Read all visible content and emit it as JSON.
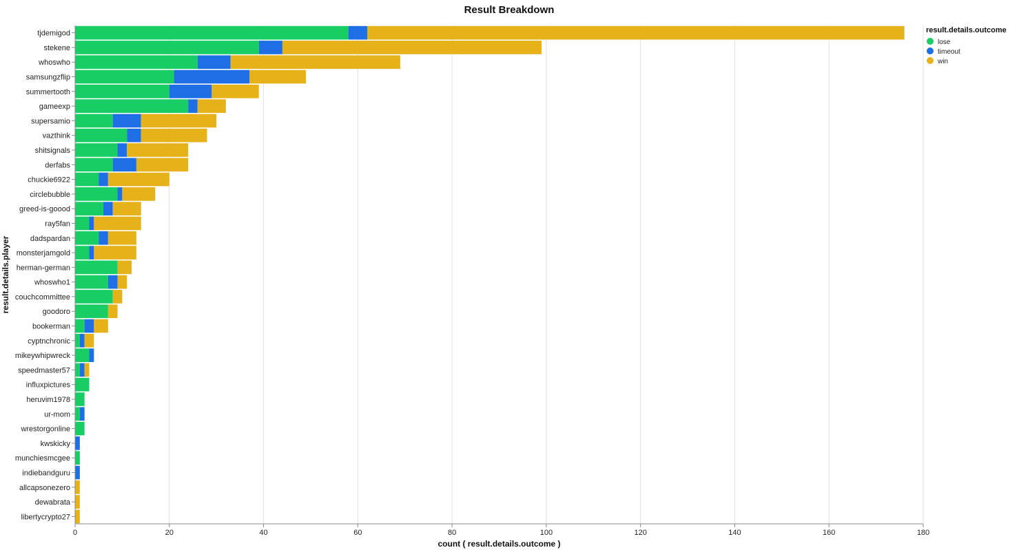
{
  "chart_data": {
    "type": "bar",
    "orientation": "horizontal",
    "stacked": true,
    "title": "Result Breakdown",
    "xlabel": "count ( result.details.outcome )",
    "ylabel": "result.details.player",
    "xlim": [
      0,
      180
    ],
    "xticks": [
      0,
      20,
      40,
      60,
      80,
      100,
      120,
      140,
      160,
      180
    ],
    "grid": true,
    "legend": {
      "title": "result.details.outcome",
      "position": "top-right"
    },
    "categories": [
      "tjdemigod",
      "stekene",
      "whoswho",
      "samsungzflip",
      "summertooth",
      "gameexp",
      "supersamio",
      "vazthink",
      "shitsignals",
      "derfabs",
      "chuckie6922",
      "circlebubble",
      "greed-is-goood",
      "ray5fan",
      "dadspardan",
      "monsterjamgold",
      "herman-german",
      "whoswho1",
      "couchcommittee",
      "goodoro",
      "bookerman",
      "cyptnchronic",
      "mikeywhipwreck",
      "speedmaster57",
      "influxpictures",
      "heruvim1978",
      "ur-mom",
      "wrestorgonline",
      "kwskicky",
      "munchiesmcgee",
      "indiebandguru",
      "allcapsonezero",
      "dewabrata",
      "libertycrypto27"
    ],
    "series": [
      {
        "name": "lose",
        "color": "#18cd64",
        "values": [
          58,
          39,
          26,
          21,
          20,
          24,
          8,
          11,
          9,
          8,
          5,
          9,
          6,
          3,
          5,
          3,
          9,
          7,
          8,
          7,
          2,
          1,
          3,
          1,
          3,
          2,
          1,
          2,
          0,
          1,
          0,
          0,
          0,
          0
        ]
      },
      {
        "name": "timeout",
        "color": "#1e6fe6",
        "values": [
          4,
          5,
          7,
          16,
          9,
          2,
          6,
          3,
          2,
          5,
          2,
          1,
          2,
          1,
          2,
          1,
          0,
          2,
          0,
          0,
          2,
          1,
          1,
          1,
          0,
          0,
          1,
          0,
          1,
          0,
          1,
          0,
          0,
          0
        ]
      },
      {
        "name": "win",
        "color": "#e6b219",
        "values": [
          114,
          55,
          36,
          12,
          10,
          6,
          16,
          14,
          13,
          11,
          13,
          7,
          6,
          10,
          6,
          9,
          3,
          2,
          2,
          2,
          3,
          2,
          0,
          1,
          0,
          0,
          0,
          0,
          0,
          0,
          0,
          1,
          1,
          1
        ]
      }
    ]
  }
}
